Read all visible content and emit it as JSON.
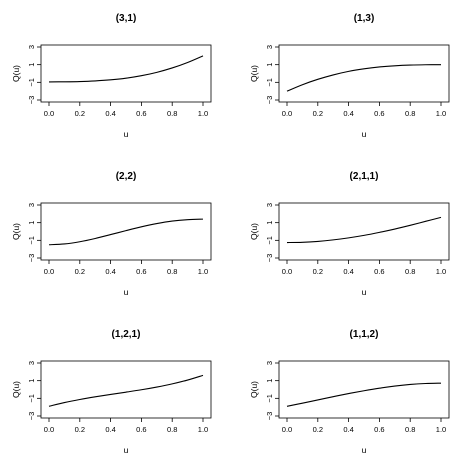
{
  "chart_data": [
    {
      "type": "line",
      "title": "(3,1)",
      "xlabel": "u",
      "ylabel": "Q(u)",
      "xlim": [
        0,
        1
      ],
      "ylim": [
        -3,
        3
      ],
      "xticks": [
        "0.0",
        "0.2",
        "0.4",
        "0.6",
        "0.8",
        "1.0"
      ],
      "yticks": [
        "-3",
        "-1",
        "1",
        "3"
      ],
      "grid": false,
      "x": [
        0.0,
        0.1,
        0.2,
        0.3,
        0.4,
        0.5,
        0.6,
        0.7,
        0.8,
        0.9,
        1.0
      ],
      "y": [
        -0.95,
        -0.94,
        -0.91,
        -0.84,
        -0.72,
        -0.53,
        -0.25,
        0.13,
        0.63,
        1.25,
        2.0
      ]
    },
    {
      "type": "line",
      "title": "(1,3)",
      "xlabel": "u",
      "ylabel": "Q(u)",
      "xlim": [
        0,
        1
      ],
      "ylim": [
        -3,
        3
      ],
      "xticks": [
        "0.0",
        "0.2",
        "0.4",
        "0.6",
        "0.8",
        "1.0"
      ],
      "yticks": [
        "-3",
        "-1",
        "1",
        "3"
      ],
      "grid": false,
      "x": [
        0.0,
        0.1,
        0.2,
        0.3,
        0.4,
        0.5,
        0.6,
        0.7,
        0.8,
        0.9,
        1.0
      ],
      "y": [
        -2.0,
        -1.27,
        -0.66,
        -0.16,
        0.24,
        0.53,
        0.74,
        0.87,
        0.95,
        0.99,
        1.0
      ]
    },
    {
      "type": "line",
      "title": "(2,2)",
      "xlabel": "u",
      "ylabel": "Q(u)",
      "xlim": [
        0,
        1
      ],
      "ylim": [
        -3,
        3
      ],
      "xticks": [
        "0.0",
        "0.2",
        "0.4",
        "0.6",
        "0.8",
        "1.0"
      ],
      "yticks": [
        "-3",
        "-1",
        "1",
        "3"
      ],
      "grid": false,
      "x": [
        0.0,
        0.1,
        0.2,
        0.3,
        0.4,
        0.5,
        0.6,
        0.7,
        0.8,
        0.9,
        1.0
      ],
      "y": [
        -1.5,
        -1.41,
        -1.16,
        -0.79,
        -0.35,
        0.1,
        0.53,
        0.9,
        1.18,
        1.34,
        1.4
      ]
    },
    {
      "type": "line",
      "title": "(2,1,1)",
      "xlabel": "u",
      "ylabel": "Q(u)",
      "xlim": [
        0,
        1
      ],
      "ylim": [
        -3,
        3
      ],
      "xticks": [
        "0.0",
        "0.2",
        "0.4",
        "0.6",
        "0.8",
        "1.0"
      ],
      "yticks": [
        "-3",
        "-1",
        "1",
        "3"
      ],
      "grid": false,
      "x": [
        0.0,
        0.1,
        0.2,
        0.3,
        0.4,
        0.5,
        0.6,
        0.7,
        0.8,
        0.9,
        1.0
      ],
      "y": [
        -1.25,
        -1.22,
        -1.12,
        -0.95,
        -0.72,
        -0.44,
        -0.1,
        0.28,
        0.7,
        1.15,
        1.6
      ]
    },
    {
      "type": "line",
      "title": "(1,2,1)",
      "xlabel": "u",
      "ylabel": "Q(u)",
      "xlim": [
        0,
        1
      ],
      "ylim": [
        -3,
        3
      ],
      "xticks": [
        "0.0",
        "0.2",
        "0.4",
        "0.6",
        "0.8",
        "1.0"
      ],
      "yticks": [
        "-3",
        "-1",
        "1",
        "3"
      ],
      "grid": false,
      "x": [
        0.0,
        0.1,
        0.2,
        0.3,
        0.4,
        0.5,
        0.6,
        0.7,
        0.8,
        0.9,
        1.0
      ],
      "y": [
        -1.9,
        -1.48,
        -1.13,
        -0.83,
        -0.56,
        -0.3,
        -0.03,
        0.28,
        0.64,
        1.07,
        1.6
      ]
    },
    {
      "type": "line",
      "title": "(1,1,2)",
      "xlabel": "u",
      "ylabel": "Q(u)",
      "xlim": [
        0,
        1
      ],
      "ylim": [
        -3,
        3
      ],
      "xticks": [
        "0.0",
        "0.2",
        "0.4",
        "0.6",
        "0.8",
        "1.0"
      ],
      "yticks": [
        "-3",
        "-1",
        "1",
        "3"
      ],
      "grid": false,
      "x": [
        0.0,
        0.1,
        0.2,
        0.3,
        0.4,
        0.5,
        0.6,
        0.7,
        0.8,
        0.9,
        1.0
      ],
      "y": [
        -1.9,
        -1.55,
        -1.18,
        -0.81,
        -0.46,
        -0.14,
        0.15,
        0.39,
        0.57,
        0.68,
        0.72
      ]
    }
  ]
}
